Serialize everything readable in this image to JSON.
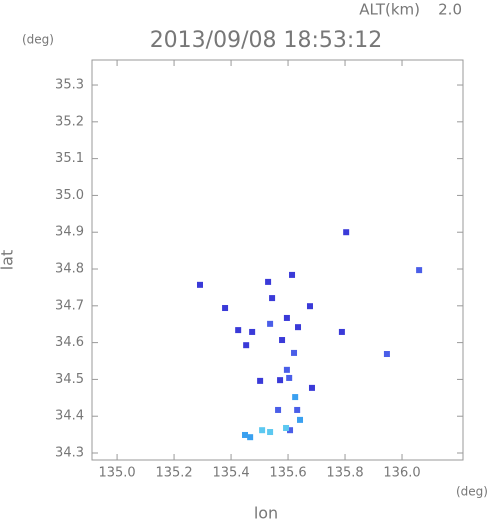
{
  "chart_data": {
    "type": "scatter",
    "title": "2013/09/08 18:53:12",
    "altitude_label": "ALT(km)",
    "altitude_value": "2.0",
    "y_unit": "(deg)",
    "x_unit": "(deg)",
    "x_label": "lon",
    "y_label": "lat",
    "xlim": [
      134.912,
      136.214
    ],
    "ylim": [
      34.281,
      35.368
    ],
    "xticks": [
      {
        "value": 135.0,
        "label": "135.0"
      },
      {
        "value": 135.2,
        "label": "135.2"
      },
      {
        "value": 135.4,
        "label": "135.4"
      },
      {
        "value": 135.6,
        "label": "135.6"
      },
      {
        "value": 135.8,
        "label": "135.8"
      },
      {
        "value": 136.0,
        "label": "136.0"
      }
    ],
    "yticks": [
      {
        "value": 34.3,
        "label": "34.3"
      },
      34.4,
      34.5,
      34.6,
      34.7,
      34.8,
      34.9,
      {
        "value": 35.0,
        "label": "35.0"
      },
      35.1,
      35.2,
      35.3
    ],
    "x": [
      135.291,
      135.53,
      135.614,
      135.804,
      136.06,
      135.379,
      135.544,
      135.677,
      135.425,
      135.474,
      135.537,
      135.596,
      135.635,
      135.579,
      135.789,
      135.453,
      135.947,
      135.621,
      135.502,
      135.596,
      135.572,
      135.604,
      135.684,
      135.625,
      135.632,
      135.642,
      135.565,
      135.607,
      135.467,
      135.509,
      135.537,
      135.449,
      135.593
    ],
    "y": [
      34.757,
      34.765,
      34.784,
      34.9,
      34.797,
      34.694,
      34.721,
      34.699,
      34.634,
      34.629,
      34.651,
      34.667,
      34.642,
      34.607,
      34.629,
      34.593,
      34.569,
      34.572,
      34.496,
      34.526,
      34.498,
      34.504,
      34.477,
      34.452,
      34.417,
      34.39,
      34.417,
      34.362,
      34.343,
      34.362,
      34.357,
      34.349,
      34.368
    ],
    "colors": [
      "#3a3ad8",
      "#3a3ad8",
      "#3a3ad8",
      "#3a3ad8",
      "#4a5ee8",
      "#3a3ad8",
      "#3a3ad8",
      "#3a3ad8",
      "#3a3ad8",
      "#3a3ad8",
      "#4a5ee8",
      "#3a3ad8",
      "#3a3ad8",
      "#3a3ad8",
      "#3a3ad8",
      "#3a3ad8",
      "#4a5ee8",
      "#4a5ee8",
      "#3a3ad8",
      "#4a5ee8",
      "#3a3ad8",
      "#4a5ee8",
      "#3a3ad8",
      "#3aa0f0",
      "#4a5ee8",
      "#3aa0f0",
      "#4a5ee8",
      "#4a5ee8",
      "#3aa0f0",
      "#5cc8f0",
      "#5cc8f0",
      "#3aa0f0",
      "#5cc8f0"
    ]
  }
}
